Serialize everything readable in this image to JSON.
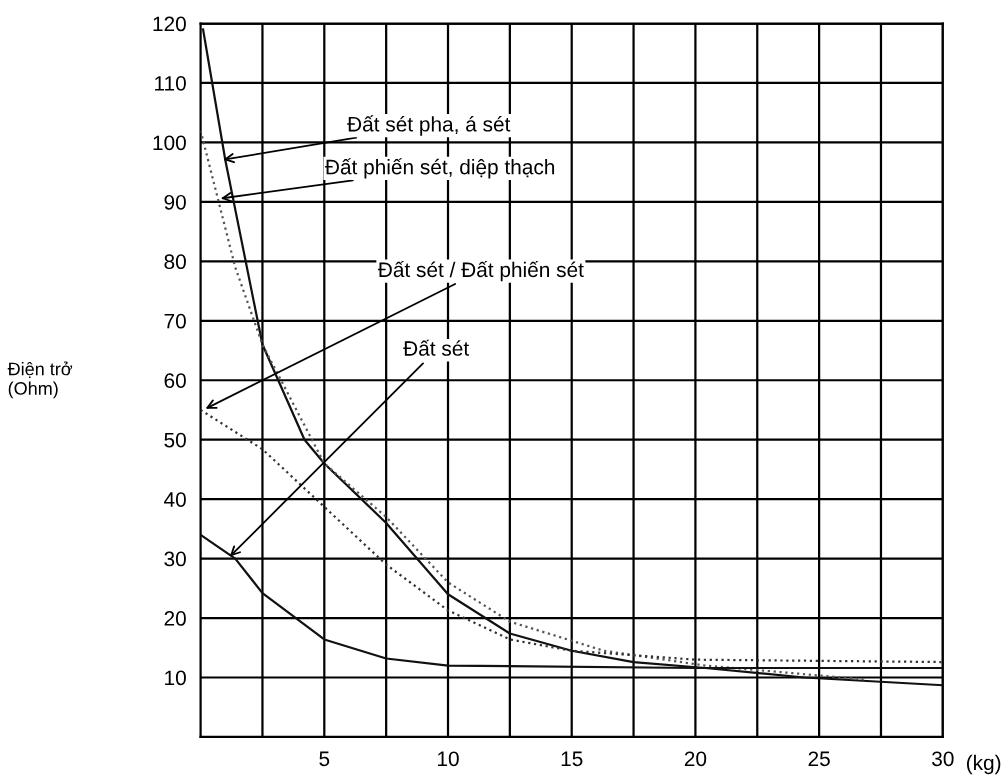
{
  "chart_data": {
    "type": "line",
    "xlabel": "(kg)",
    "ylabel": "Điện trở\n(Ohm)",
    "xlim": [
      0,
      30
    ],
    "ylim": [
      0,
      120
    ],
    "xticks": [
      {
        "value": 2.5,
        "label": null
      },
      5,
      {
        "value": 7.5,
        "label": null
      },
      10,
      {
        "value": 12.5,
        "label": null
      },
      15,
      {
        "value": 17.5,
        "label": null
      },
      20,
      {
        "value": 22.5,
        "label": null
      },
      25,
      {
        "value": 27.5,
        "label": null
      },
      30
    ],
    "yticks": [
      10,
      20,
      30,
      40,
      50,
      60,
      70,
      80,
      90,
      100,
      110,
      120
    ],
    "grid": true,
    "marker": "none",
    "series": [
      {
        "color": "#111111",
        "line_style": "solid",
        "x": [
          0.1,
          1,
          2.5,
          4.2,
          5,
          7.5,
          10,
          12.5,
          15,
          17.5,
          20.4,
          24.4,
          30
        ],
        "values": [
          119,
          97,
          66,
          50,
          46,
          36,
          24,
          17.4,
          14.5,
          12.6,
          11.6,
          10,
          8.7
        ]
      },
      {
        "color": "#555555",
        "line_style": "dotted",
        "x": [
          0,
          1.4,
          2.5,
          5,
          7.5,
          10,
          12.5,
          16.3,
          20.4,
          26.8
        ],
        "values": [
          102,
          79,
          66,
          46,
          37,
          26,
          19.4,
          14.5,
          12,
          9.7
        ]
      },
      {
        "color": "#333333",
        "line_style": "dotted",
        "x": [
          0,
          2.5,
          5,
          7.5,
          10,
          12.5,
          15,
          20,
          30
        ],
        "values": [
          55,
          48.4,
          38.7,
          29,
          21.3,
          16.4,
          14.5,
          13,
          12.6
        ]
      },
      {
        "color": "#111111",
        "line_style": "solid",
        "x": [
          0,
          1.4,
          2.5,
          5,
          7.5,
          10,
          20,
          30
        ],
        "values": [
          34,
          30,
          24.2,
          16.4,
          13.2,
          12,
          11.6,
          11.6
        ]
      }
    ],
    "annotations": [
      {
        "text": "Đất sét pha, á sét",
        "x": 0.8,
        "y": 97
      },
      {
        "text": "Đất phiến sét, diệp thạch",
        "x": 0.7,
        "y": 90.5
      },
      {
        "text": "Đất sét / Đất phiến sét",
        "x": 0.1,
        "y": 55
      },
      {
        "text": "Đất sét",
        "x": 1.1,
        "y": 30
      }
    ]
  }
}
